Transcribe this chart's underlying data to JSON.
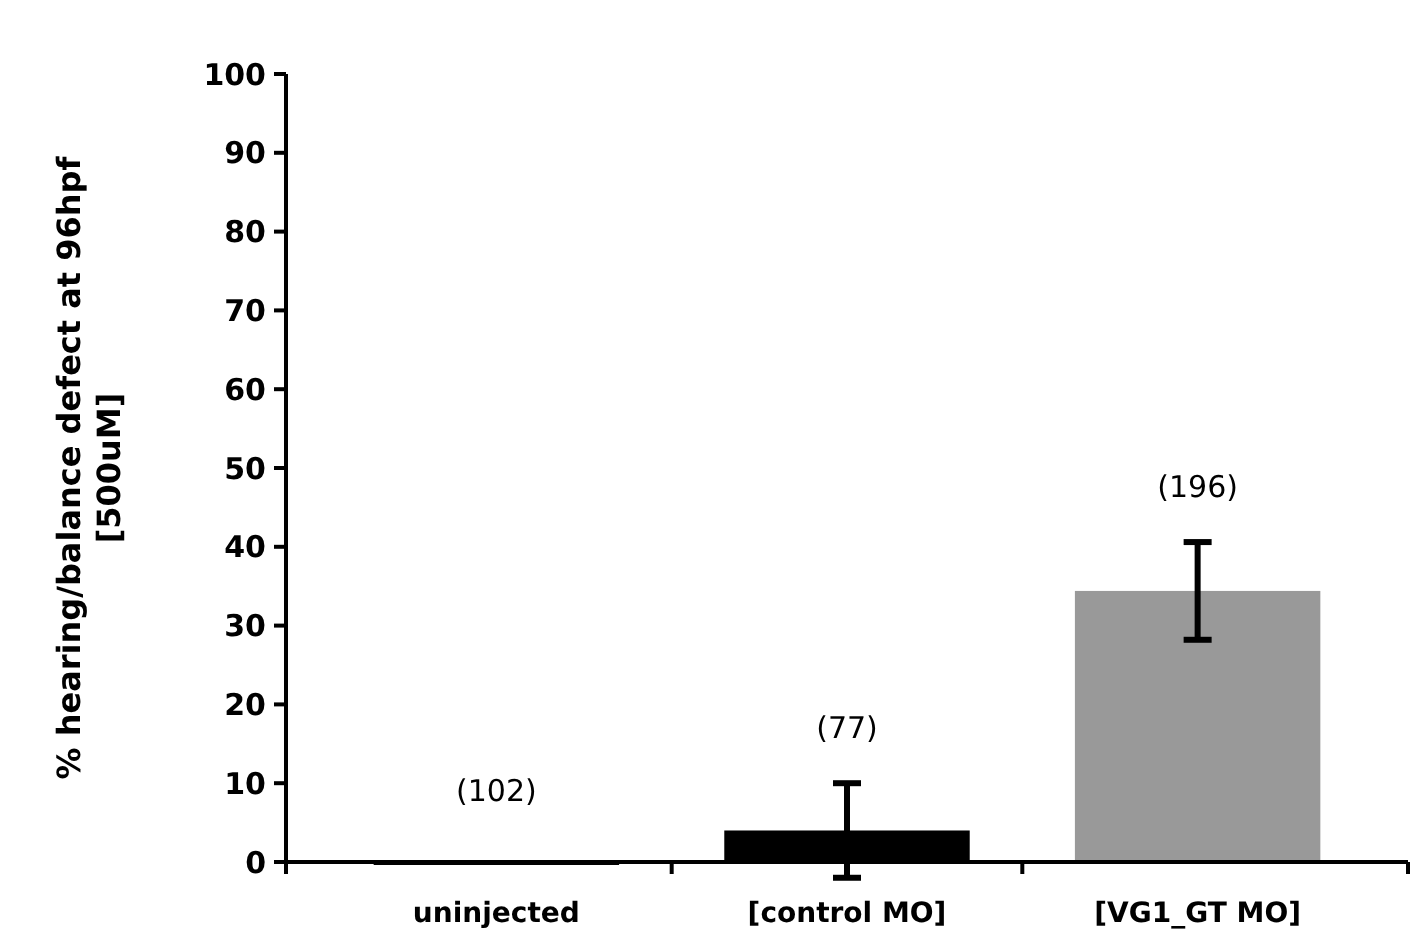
{
  "chart_data": {
    "type": "bar",
    "ylabel": "% hearing/balance defect at 96hpf\n[500uM]",
    "categories": [
      "uninjected",
      "[control MO]",
      "[VG1_GT MO]"
    ],
    "values": [
      0,
      4,
      34.4
    ],
    "colors": [
      "#000000",
      "#000000",
      "#999999"
    ],
    "errors": [
      null,
      6,
      6.2
    ],
    "ylim": [
      0,
      100
    ],
    "yticks": [
      0,
      10,
      20,
      30,
      40,
      50,
      60,
      70,
      80,
      90,
      100
    ],
    "grid": false,
    "annotations": [
      "(102)",
      "(77)",
      "(196)"
    ]
  }
}
